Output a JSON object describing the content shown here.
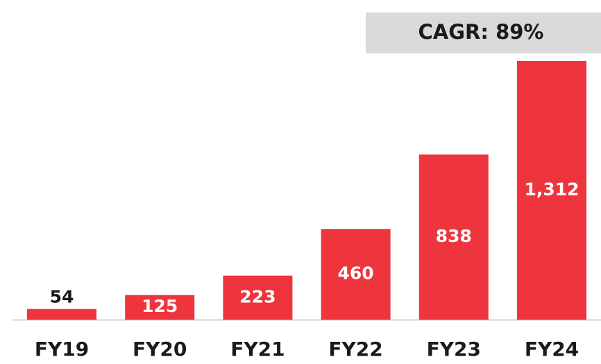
{
  "chart_data": {
    "type": "bar",
    "annotation": "CAGR: 89%",
    "categories": [
      "FY19",
      "FY20",
      "FY21",
      "FY22",
      "FY23",
      "FY24"
    ],
    "values": [
      54,
      125,
      223,
      460,
      838,
      1312
    ],
    "value_labels": [
      "54",
      "125",
      "223",
      "460",
      "838",
      "1,312"
    ],
    "color": "#ee343d"
  }
}
